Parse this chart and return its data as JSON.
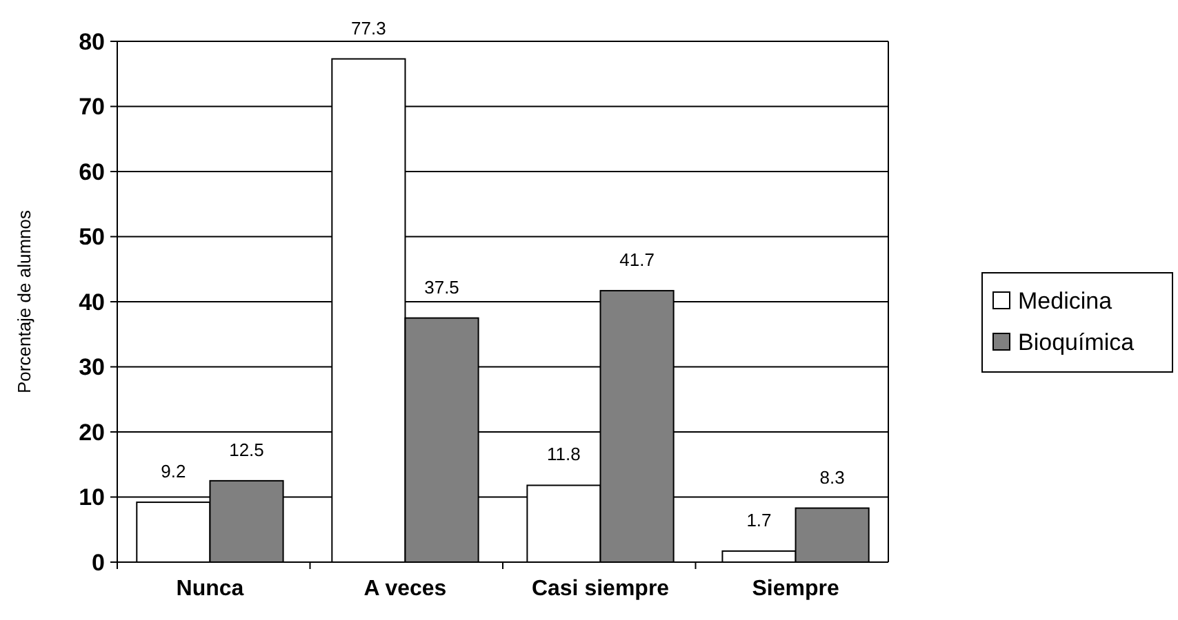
{
  "chart_data": {
    "type": "bar",
    "ylabel": "Porcentaje de alumnos",
    "categories": [
      "Nunca",
      "A veces",
      "Casi siempre",
      "Siempre"
    ],
    "series": [
      {
        "name": "Medicina",
        "color": "#ffffff",
        "values": [
          9.2,
          77.3,
          11.8,
          1.7
        ]
      },
      {
        "name": "Bioquímica",
        "color": "#808080",
        "values": [
          12.5,
          37.5,
          41.7,
          8.3
        ]
      }
    ],
    "ylim": [
      0,
      80
    ],
    "yticks": [
      0,
      10,
      20,
      30,
      40,
      50,
      60,
      70,
      80
    ],
    "grid": "y",
    "legend": "right",
    "data_labels": true
  }
}
